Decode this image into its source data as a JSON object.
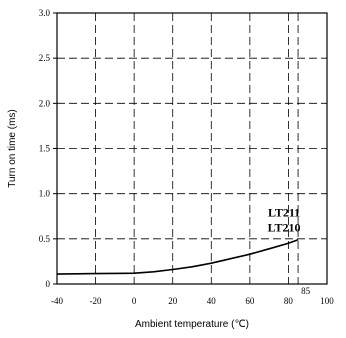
{
  "chart_data": {
    "type": "line",
    "title": "",
    "xlabel": "Ambient temperature (℃)",
    "ylabel": "Turn on time (ms)",
    "xlim": [
      -40,
      100
    ],
    "ylim": [
      0,
      3.0
    ],
    "grid": true,
    "x_ticks": [
      -40,
      -20,
      0,
      20,
      40,
      60,
      80,
      100
    ],
    "x_tick_labels": [
      "-40",
      "-20",
      "0",
      "20",
      "40",
      "60",
      "80",
      "100"
    ],
    "y_ticks": [
      0,
      0.5,
      1.0,
      1.5,
      2.0,
      2.5,
      3.0
    ],
    "y_tick_labels": [
      "0",
      "0.5",
      "1.0",
      "1.5",
      "2.0",
      "2.5",
      "3.0"
    ],
    "extra_grid_x": [
      85
    ],
    "extra_grid_x_labels": [
      "85"
    ],
    "series": [
      {
        "name": "LT211 LT210",
        "labels": [
          "LT211",
          "LT210"
        ],
        "x": [
          -40,
          -20,
          0,
          10,
          20,
          30,
          40,
          50,
          60,
          70,
          80,
          85
        ],
        "y": [
          0.11,
          0.115,
          0.12,
          0.135,
          0.16,
          0.19,
          0.23,
          0.28,
          0.33,
          0.39,
          0.45,
          0.49
        ]
      }
    ]
  }
}
